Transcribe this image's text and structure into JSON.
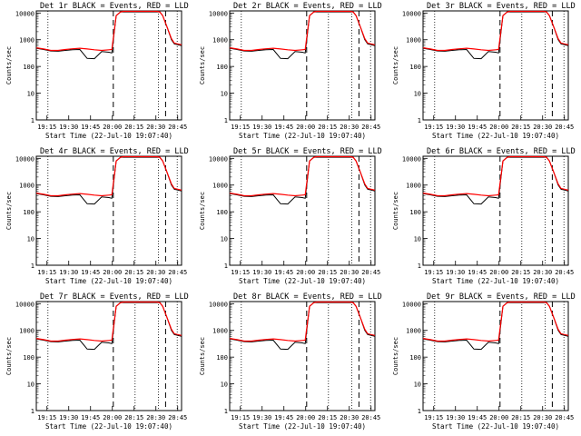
{
  "figure": {
    "common": {
      "type": "line",
      "ylabel": "Counts/sec",
      "xlabel": "Start Time (22-Jul-10 19:07:40)",
      "xticks": [
        "19:15",
        "19:30",
        "19:45",
        "20:00",
        "20:15",
        "20:30",
        "20:45"
      ],
      "yticks": [
        "1",
        "10",
        "100",
        "1000",
        "10000"
      ],
      "ylim": [
        1,
        12000
      ],
      "xlim_min_after_start": [
        0,
        100
      ],
      "colors": {
        "events": "#000000",
        "lld": "#ff0000"
      }
    },
    "panels": [
      {
        "title": "Det 1r BLACK = Events, RED = LLD"
      },
      {
        "title": "Det 2r BLACK = Events, RED = LLD"
      },
      {
        "title": "Det 3r BLACK = Events, RED = LLD"
      },
      {
        "title": "Det 4r BLACK = Events, RED = LLD"
      },
      {
        "title": "Det 5r BLACK = Events, RED = LLD"
      },
      {
        "title": "Det 6r BLACK = Events, RED = LLD"
      },
      {
        "title": "Det 7r BLACK = Events, RED = LLD"
      },
      {
        "title": "Det 8r BLACK = Events, RED = LLD"
      },
      {
        "title": "Det 9r BLACK = Events, RED = LLD"
      }
    ]
  },
  "chart_data": {
    "type": "line",
    "x_units": "minutes after 19:07:40",
    "x": [
      0,
      5,
      10,
      15,
      20,
      25,
      30,
      35,
      40,
      45,
      50,
      52,
      55,
      58,
      60,
      65,
      68,
      70,
      75,
      80,
      83,
      85,
      87,
      90,
      93,
      95,
      100
    ],
    "series": [
      {
        "name": "Events",
        "color": "#000000",
        "values": [
          480,
          430,
          380,
          370,
          400,
          420,
          430,
          200,
          195,
          360,
          340,
          320,
          8000,
          11000,
          11000,
          11000,
          11000,
          11000,
          11000,
          11000,
          11000,
          11000,
          8000,
          3000,
          1000,
          700,
          600
        ]
      },
      {
        "name": "LLD",
        "color": "#ff0000",
        "values": [
          500,
          450,
          400,
          400,
          430,
          460,
          480,
          450,
          420,
          400,
          420,
          430,
          8000,
          11000,
          11500,
          11500,
          11500,
          11500,
          11500,
          11500,
          11500,
          11000,
          8000,
          3000,
          1100,
          750,
          650
        ]
      }
    ],
    "vlines_dashed_min": [
      53,
      89
    ],
    "vlines_dotted_min": [
      8,
      68,
      84,
      97
    ],
    "xlabel": "Start Time (22-Jul-10 19:07:40)",
    "ylabel": "Counts/sec",
    "ylim": [
      1,
      12000
    ],
    "yscale": "log"
  }
}
